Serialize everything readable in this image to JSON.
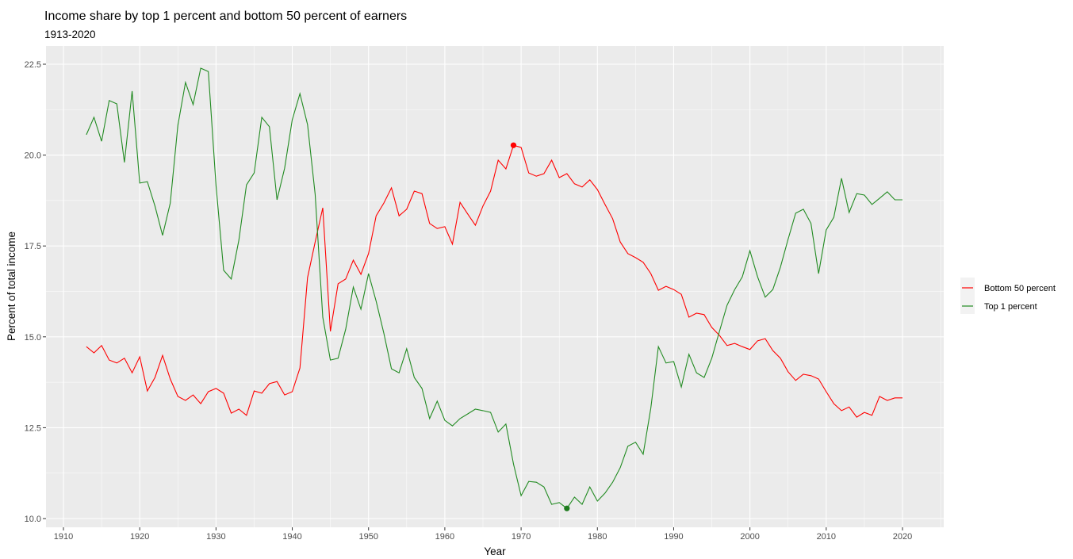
{
  "chart_data": {
    "type": "line",
    "title": "Income share by top 1 percent and bottom 50 percent of earners",
    "subtitle": "1913-2020",
    "xlabel": "Year",
    "ylabel": "Percent of total income",
    "xlim": [
      1908,
      2025
    ],
    "ylim": [
      9.75,
      22.85
    ],
    "xticks": [
      1910,
      1920,
      1930,
      1940,
      1950,
      1960,
      1970,
      1980,
      1990,
      2000,
      2010,
      2020
    ],
    "yticks": [
      10.0,
      12.5,
      15.0,
      17.5,
      20.0,
      22.5
    ],
    "ytick_labels": [
      "10.0",
      "12.5",
      "15.0",
      "17.5",
      "20.0",
      "22.5"
    ],
    "grid": true,
    "legend_position": "right",
    "x": [
      1913,
      1914,
      1915,
      1916,
      1917,
      1918,
      1919,
      1920,
      1921,
      1922,
      1923,
      1924,
      1925,
      1926,
      1927,
      1928,
      1929,
      1930,
      1931,
      1932,
      1933,
      1934,
      1935,
      1936,
      1937,
      1938,
      1939,
      1940,
      1941,
      1942,
      1943,
      1944,
      1945,
      1946,
      1947,
      1948,
      1949,
      1950,
      1951,
      1952,
      1953,
      1954,
      1955,
      1956,
      1957,
      1958,
      1959,
      1960,
      1961,
      1962,
      1963,
      1964,
      1965,
      1966,
      1967,
      1968,
      1969,
      1970,
      1971,
      1972,
      1973,
      1974,
      1975,
      1976,
      1977,
      1978,
      1979,
      1980,
      1981,
      1982,
      1983,
      1984,
      1985,
      1986,
      1987,
      1988,
      1989,
      1990,
      1991,
      1992,
      1993,
      1994,
      1995,
      1996,
      1997,
      1998,
      1999,
      2000,
      2001,
      2002,
      2003,
      2004,
      2005,
      2006,
      2007,
      2008,
      2009,
      2010,
      2011,
      2012,
      2013,
      2014,
      2015,
      2016,
      2017,
      2018,
      2019,
      2020
    ],
    "series": [
      {
        "name": "Bottom 50 percent",
        "color": "#FF0000",
        "values": [
          14.73,
          14.56,
          14.76,
          14.36,
          14.28,
          14.41,
          14.01,
          14.45,
          13.51,
          13.88,
          14.49,
          13.84,
          13.36,
          13.25,
          13.4,
          13.16,
          13.49,
          13.58,
          13.45,
          12.9,
          13.01,
          12.84,
          13.51,
          13.45,
          13.71,
          13.77,
          13.4,
          13.49,
          14.14,
          16.63,
          17.61,
          18.55,
          15.15,
          16.46,
          16.59,
          17.11,
          16.72,
          17.29,
          18.33,
          18.68,
          19.1,
          18.33,
          18.51,
          19.01,
          18.94,
          18.12,
          17.98,
          18.03,
          17.55,
          18.7,
          18.38,
          18.07,
          18.6,
          19.01,
          19.86,
          19.62,
          20.27,
          20.21,
          19.51,
          19.42,
          19.49,
          19.86,
          19.38,
          19.49,
          19.21,
          19.12,
          19.32,
          19.05,
          18.64,
          18.25,
          17.61,
          17.29,
          17.18,
          17.05,
          16.74,
          16.28,
          16.39,
          16.3,
          16.17,
          15.54,
          15.65,
          15.61,
          15.26,
          15.04,
          14.76,
          14.82,
          14.73,
          14.65,
          14.89,
          14.95,
          14.62,
          14.41,
          14.04,
          13.8,
          13.97,
          13.93,
          13.84,
          13.49,
          13.16,
          12.97,
          13.07,
          12.79,
          12.92,
          12.84,
          13.36,
          13.25,
          13.32,
          13.32
        ],
        "highlight": {
          "x": 1969,
          "y": 20.27,
          "color": "#FF0000"
        }
      },
      {
        "name": "Top 1 percent",
        "color": "#228B22",
        "values": [
          20.56,
          21.04,
          20.38,
          21.5,
          21.41,
          19.8,
          21.76,
          19.23,
          19.27,
          18.6,
          17.79,
          18.68,
          20.82,
          22.0,
          21.39,
          22.39,
          22.3,
          19.16,
          16.83,
          16.59,
          17.66,
          19.18,
          19.51,
          21.04,
          20.78,
          18.77,
          19.64,
          20.97,
          21.69,
          20.84,
          18.92,
          15.54,
          14.36,
          14.41,
          15.21,
          16.37,
          15.76,
          16.74,
          15.98,
          15.1,
          14.12,
          14.01,
          14.67,
          13.88,
          13.58,
          12.75,
          13.23,
          12.7,
          12.55,
          12.75,
          12.88,
          13.01,
          12.97,
          12.92,
          12.38,
          12.6,
          11.5,
          10.63,
          11.02,
          11.0,
          10.87,
          10.39,
          10.44,
          10.28,
          10.59,
          10.39,
          10.87,
          10.48,
          10.7,
          11.0,
          11.4,
          11.99,
          12.1,
          11.77,
          13.03,
          14.73,
          14.28,
          14.32,
          13.62,
          14.52,
          14.01,
          13.88,
          14.41,
          15.15,
          15.87,
          16.3,
          16.65,
          17.37,
          16.65,
          16.09,
          16.3,
          16.92,
          17.68,
          18.4,
          18.51,
          18.12,
          16.74,
          17.94,
          18.29,
          19.36,
          18.42,
          18.94,
          18.9,
          18.64,
          18.81,
          18.99,
          18.77,
          18.77
        ],
        "highlight": {
          "x": 1976,
          "y": 10.28,
          "color": "#1E7B1E"
        }
      }
    ]
  }
}
